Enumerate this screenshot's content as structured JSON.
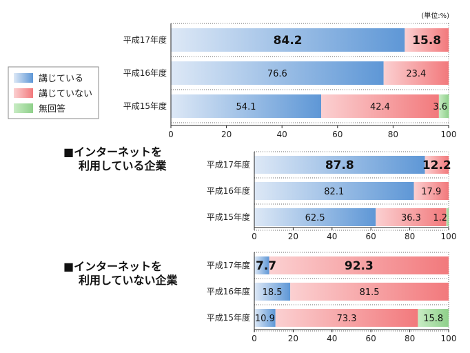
{
  "unit_label": "(単位:%)",
  "colors": {
    "yes": "#6a9fd8",
    "no": "#f58f92",
    "none": "#9ed79a"
  },
  "legend": [
    {
      "key": "yes",
      "label": "講じている"
    },
    {
      "key": "no",
      "label": "講じていない"
    },
    {
      "key": "none",
      "label": "無回答"
    }
  ],
  "chart_data": [
    {
      "type": "bar",
      "orientation": "horizontal",
      "stacked": true,
      "title": "",
      "categories": [
        "平成17年度",
        "平成16年度",
        "平成15年度"
      ],
      "series": [
        {
          "name": "講じている",
          "values": [
            84.2,
            76.6,
            54.1
          ]
        },
        {
          "name": "講じていない",
          "values": [
            15.8,
            23.4,
            42.4
          ]
        },
        {
          "name": "無回答",
          "values": [
            0,
            0,
            3.6
          ]
        }
      ],
      "xlim": [
        0,
        100
      ],
      "xticks": [
        0,
        20,
        40,
        60,
        80,
        100
      ],
      "bold_category": "平成17年度"
    },
    {
      "type": "bar",
      "orientation": "horizontal",
      "stacked": true,
      "title_lines": [
        "■インターネットを",
        "利用している企業"
      ],
      "categories": [
        "平成17年度",
        "平成16年度",
        "平成15年度"
      ],
      "series": [
        {
          "name": "講じている",
          "values": [
            87.8,
            82.1,
            62.5
          ]
        },
        {
          "name": "講じていない",
          "values": [
            12.2,
            17.9,
            36.3
          ]
        },
        {
          "name": "無回答",
          "values": [
            0,
            0,
            1.2
          ]
        }
      ],
      "xlim": [
        0,
        100
      ],
      "xticks": [
        0,
        20,
        40,
        60,
        80,
        100
      ],
      "bold_category": "平成17年度"
    },
    {
      "type": "bar",
      "orientation": "horizontal",
      "stacked": true,
      "title_lines": [
        "■インターネットを",
        "利用していない企業"
      ],
      "categories": [
        "平成17年度",
        "平成16年度",
        "平成15年度"
      ],
      "series": [
        {
          "name": "講じている",
          "values": [
            7.7,
            18.5,
            10.9
          ]
        },
        {
          "name": "講じていない",
          "values": [
            92.3,
            81.5,
            73.3
          ]
        },
        {
          "name": "無回答",
          "values": [
            0,
            0,
            15.8
          ]
        }
      ],
      "xlim": [
        0,
        100
      ],
      "xticks": [
        0,
        20,
        40,
        60,
        80,
        100
      ],
      "bold_category": "平成17年度"
    }
  ]
}
